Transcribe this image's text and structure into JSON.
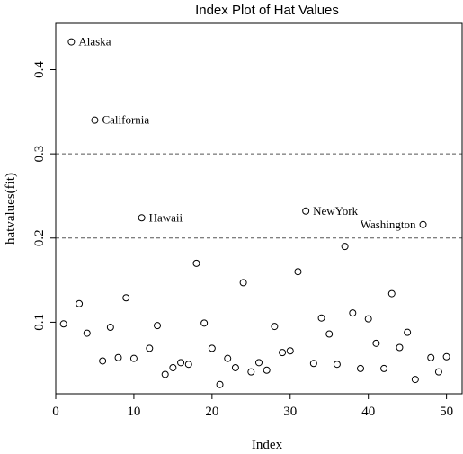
{
  "chart_data": {
    "type": "scatter",
    "title": "Index Plot of Hat Values",
    "xlabel": "Index",
    "ylabel": "hatvalues(fit)",
    "xlim": [
      0,
      52
    ],
    "ylim": [
      0.015,
      0.455
    ],
    "xticks": [
      0,
      10,
      20,
      30,
      40,
      50
    ],
    "yticks": [
      0.1,
      0.2,
      0.3,
      0.4
    ],
    "xtick_labels": [
      "0",
      "10",
      "20",
      "30",
      "40",
      "50"
    ],
    "ytick_labels": [
      "0.1",
      "0.2",
      "0.3",
      "0.4"
    ],
    "reference_lines": [
      0.2,
      0.3
    ],
    "x": [
      1,
      2,
      3,
      4,
      5,
      6,
      7,
      8,
      9,
      10,
      11,
      12,
      13,
      14,
      15,
      16,
      17,
      18,
      19,
      20,
      21,
      22,
      23,
      24,
      25,
      26,
      27,
      28,
      29,
      30,
      31,
      32,
      33,
      34,
      35,
      36,
      37,
      38,
      39,
      40,
      41,
      42,
      43,
      44,
      45,
      46,
      47,
      48,
      49,
      50
    ],
    "y": [
      0.098,
      0.433,
      0.122,
      0.087,
      0.34,
      0.054,
      0.094,
      0.058,
      0.129,
      0.057,
      0.224,
      0.069,
      0.096,
      0.038,
      0.046,
      0.052,
      0.05,
      0.17,
      0.099,
      0.069,
      0.026,
      0.057,
      0.046,
      0.147,
      0.041,
      0.052,
      0.043,
      0.095,
      0.064,
      0.066,
      0.16,
      0.232,
      0.051,
      0.105,
      0.086,
      0.05,
      0.19,
      0.111,
      0.045,
      0.104,
      0.075,
      0.045,
      0.134,
      0.07,
      0.088,
      0.032,
      0.216,
      0.058,
      0.041,
      0.059
    ],
    "annotations": [
      {
        "index": 2,
        "label": "Alaska"
      },
      {
        "index": 5,
        "label": "California"
      },
      {
        "index": 11,
        "label": "Hawaii"
      },
      {
        "index": 32,
        "label": "NewYork"
      },
      {
        "index": 47,
        "label": "Washington"
      }
    ]
  }
}
